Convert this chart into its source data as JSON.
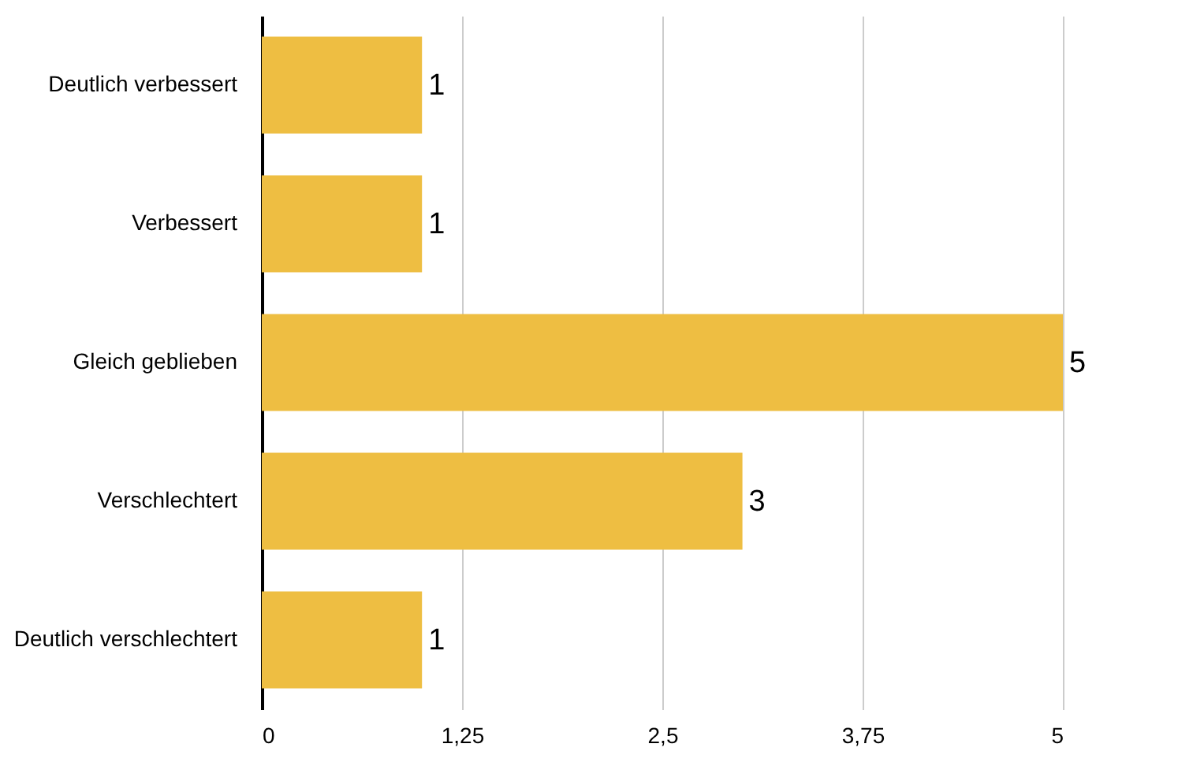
{
  "chart_data": {
    "type": "bar",
    "orientation": "horizontal",
    "categories": [
      "Deutlich verbessert",
      "Verbessert",
      "Gleich geblieben",
      "Verschlechtert",
      "Deutlich verschlechtert"
    ],
    "values": [
      1,
      1,
      5,
      3,
      1
    ],
    "color": "#eebe42",
    "xlim": [
      0,
      5
    ],
    "xticks": [
      0,
      {
        "value": 1.25,
        "label": "1,25"
      },
      {
        "value": 2.5,
        "label": "2,5"
      },
      {
        "value": 3.75,
        "label": "3,75"
      },
      5
    ],
    "grid": "x",
    "data_labels": true
  }
}
